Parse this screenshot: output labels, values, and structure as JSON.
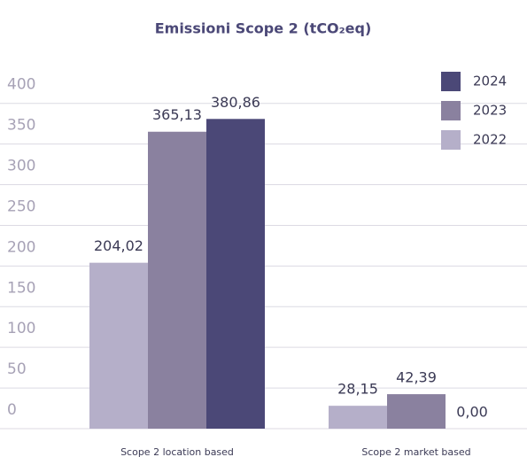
{
  "chart_data": {
    "type": "bar",
    "title": "Emissioni Scope 2 (tCO₂eq)",
    "categories": [
      "Scope 2 location based",
      "Scope 2 market based"
    ],
    "series": [
      {
        "name": "2022",
        "color": "#b5afc9",
        "values": [
          204.02,
          28.15
        ],
        "value_labels": [
          "204,02",
          "28,15"
        ]
      },
      {
        "name": "2023",
        "color": "#8a819f",
        "values": [
          365.13,
          42.39
        ],
        "value_labels": [
          "365,13",
          "42,39"
        ]
      },
      {
        "name": "2024",
        "color": "#4b4877",
        "values": [
          380.86,
          0
        ],
        "value_labels": [
          "380,86",
          "0,00"
        ]
      }
    ],
    "ylim": [
      0,
      440
    ],
    "yticks": [
      0,
      50,
      100,
      150,
      200,
      250,
      300,
      350,
      400
    ],
    "grid": true,
    "legend": "top-right"
  }
}
